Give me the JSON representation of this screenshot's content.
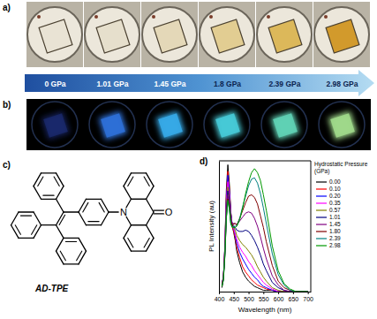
{
  "panel_labels": [
    "a)",
    "b)",
    "c)",
    "d)"
  ],
  "pressure_labels": [
    "0 GPa",
    "1.01 GPa",
    "1.45 GPa",
    "1.8 GPa",
    "2.39 GPa",
    "2.98 GPa"
  ],
  "structure": {
    "name": "AD-TPE",
    "atoms": [
      "N",
      "O"
    ]
  },
  "chart_data": {
    "type": "line",
    "x_label": "Wavelength (nm)",
    "y_label": "PL Intensity (au)",
    "legend_title": [
      "Hydrostatic Pressure",
      "(GPa)"
    ],
    "legend": "right",
    "tick_labels": "x",
    "xlim": [
      400,
      710
    ],
    "xticks": [
      400,
      450,
      500,
      550,
      600,
      650,
      700
    ],
    "ylim": [
      0,
      100
    ],
    "yticks": [],
    "x": [
      410,
      415,
      420,
      425,
      430,
      435,
      440,
      445,
      450,
      455,
      460,
      470,
      480,
      490,
      500,
      510,
      520,
      530,
      540,
      550,
      560,
      580,
      600,
      620,
      640,
      660,
      680,
      700
    ],
    "series": [
      {
        "name": "0.00",
        "color": "#000000",
        "values": [
          3,
          9,
          35,
          78,
          97,
          83,
          61,
          50,
          45,
          39,
          31,
          22,
          15,
          11,
          8,
          6,
          4,
          3,
          2,
          1,
          1,
          1,
          0,
          0,
          0,
          0,
          0,
          0
        ]
      },
      {
        "name": "0.10",
        "color": "#ff0000",
        "values": [
          4,
          10,
          34,
          74,
          92,
          80,
          60,
          50,
          46,
          41,
          34,
          26,
          19,
          15,
          12,
          9,
          7,
          5,
          4,
          3,
          2,
          1,
          0,
          0,
          0,
          0,
          0,
          0
        ]
      },
      {
        "name": "0.20",
        "color": "#0000ff",
        "values": [
          5,
          11,
          34,
          71,
          89,
          78,
          60,
          51,
          48,
          43,
          37,
          30,
          25,
          21,
          17,
          14,
          11,
          9,
          6,
          4,
          3,
          1,
          0,
          0,
          0,
          0,
          0,
          0
        ]
      },
      {
        "name": "0.35",
        "color": "#ff00ff",
        "values": [
          6,
          11,
          33,
          68,
          84,
          74,
          58,
          51,
          48,
          44,
          40,
          34,
          30,
          27,
          23,
          20,
          16,
          13,
          10,
          7,
          5,
          2,
          0,
          0,
          0,
          0,
          0,
          0
        ]
      },
      {
        "name": "0.57",
        "color": "#808000",
        "values": [
          6,
          11,
          32,
          64,
          80,
          71,
          57,
          51,
          49,
          47,
          43,
          39,
          36,
          34,
          31,
          28,
          24,
          19,
          15,
          11,
          8,
          3,
          1,
          0,
          0,
          0,
          0,
          0
        ]
      },
      {
        "name": "1.01",
        "color": "#000080",
        "values": [
          6,
          11,
          30,
          61,
          77,
          69,
          56,
          51,
          50,
          49,
          47,
          46,
          46,
          47,
          46,
          43,
          39,
          34,
          28,
          21,
          16,
          7,
          3,
          1,
          0,
          0,
          0,
          0
        ]
      },
      {
        "name": "1.45",
        "color": "#800080",
        "values": [
          6,
          11,
          29,
          59,
          74,
          67,
          56,
          52,
          52,
          52,
          51,
          54,
          57,
          60,
          61,
          60,
          56,
          50,
          42,
          33,
          25,
          12,
          5,
          1,
          0,
          0,
          0,
          0
        ]
      },
      {
        "name": "1.80",
        "color": "#800000",
        "values": [
          5,
          10,
          28,
          57,
          71,
          65,
          54,
          50,
          52,
          52,
          51,
          56,
          62,
          68,
          73,
          74,
          72,
          67,
          58,
          49,
          38,
          20,
          8,
          3,
          1,
          0,
          0,
          0
        ]
      },
      {
        "name": "2.39",
        "color": "#008080",
        "values": [
          4,
          9,
          27,
          56,
          69,
          63,
          52,
          49,
          50,
          50,
          50,
          56,
          65,
          73,
          81,
          86,
          87,
          83,
          75,
          64,
          52,
          29,
          13,
          5,
          1,
          0,
          0,
          0
        ]
      },
      {
        "name": "2.98",
        "color": "#009900",
        "values": [
          4,
          9,
          27,
          57,
          70,
          64,
          52,
          49,
          49,
          49,
          50,
          55,
          64,
          75,
          84,
          91,
          94,
          91,
          85,
          74,
          62,
          35,
          16,
          6,
          2,
          0,
          0,
          0
        ]
      }
    ]
  }
}
